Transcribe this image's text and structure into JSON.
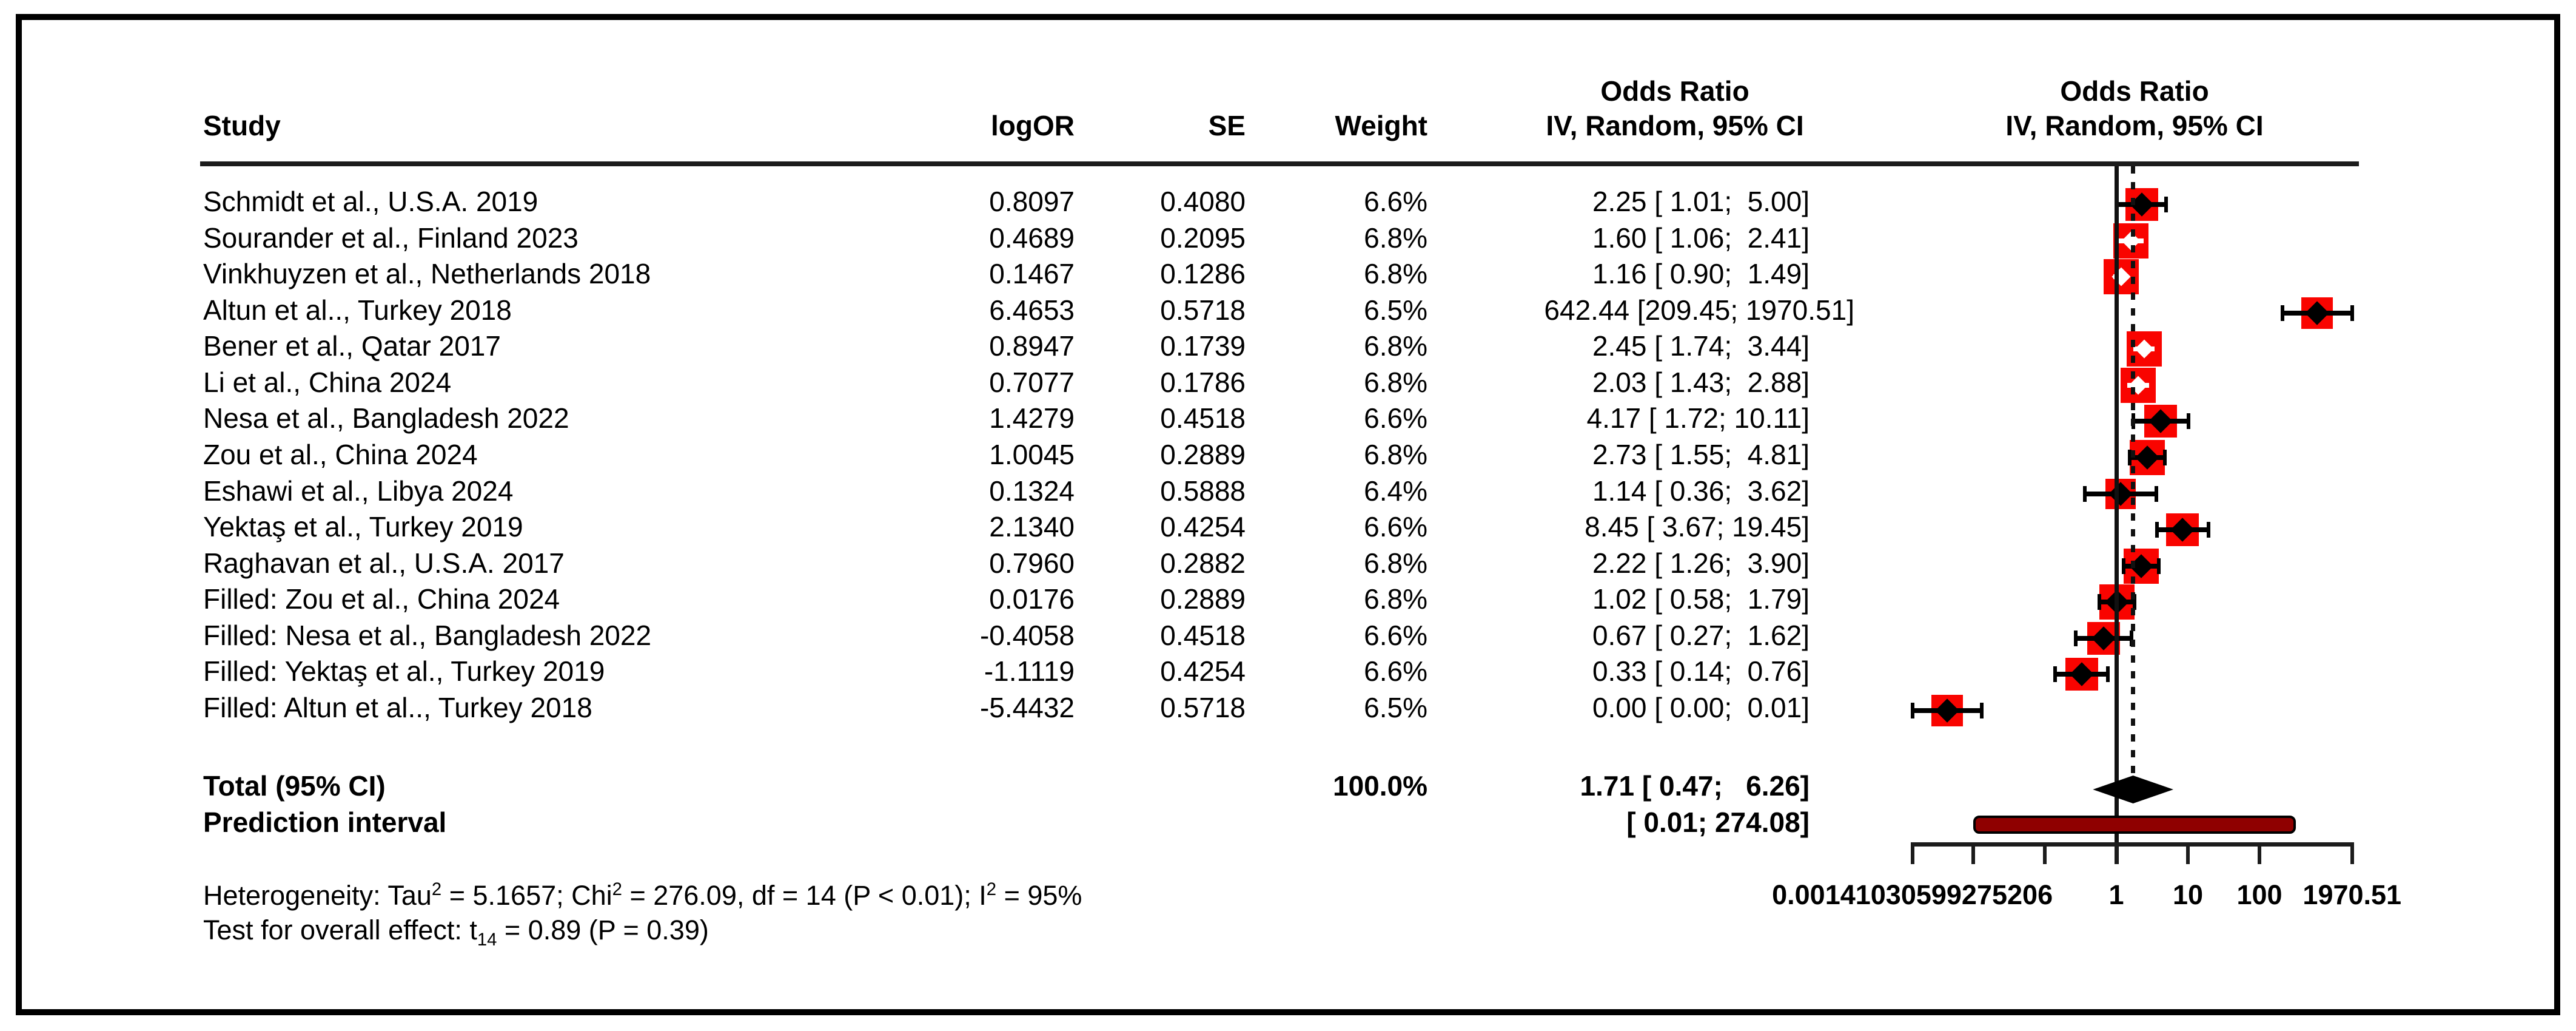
{
  "chart_data": {
    "type": "forest",
    "header": {
      "study": "Study",
      "logor": "logOR",
      "se": "SE",
      "weight": "Weight",
      "ci_line1": "Odds Ratio",
      "ci_line2": "IV, Random, 95% CI",
      "plot_line1": "Odds Ratio",
      "plot_line2": "IV, Random, 95% CI"
    },
    "rows": [
      {
        "study": "Schmidt et al., U.S.A. 2019",
        "logor": "0.8097",
        "se": "0.4080",
        "weight": "6.6%",
        "ci": "2.25 [ 1.01;  5.00]",
        "or": 2.25,
        "low": 1.01,
        "high": 5.0
      },
      {
        "study": "Sourander et al., Finland 2023",
        "logor": "0.4689",
        "se": "0.2095",
        "weight": "6.8%",
        "ci": "1.60 [ 1.06;  2.41]",
        "or": 1.6,
        "low": 1.06,
        "high": 2.41
      },
      {
        "study": "Vinkhuyzen et al., Netherlands 2018",
        "logor": "0.1467",
        "se": "0.1286",
        "weight": "6.8%",
        "ci": "1.16 [ 0.90;  1.49]",
        "or": 1.16,
        "low": 0.9,
        "high": 1.49
      },
      {
        "study": "Altun et al.., Turkey 2018",
        "logor": "6.4653",
        "se": "0.5718",
        "weight": "6.5%",
        "ci": "642.44 [209.45; 1970.51]",
        "or": 642.44,
        "low": 209.45,
        "high": 1970.51,
        "wide_ci_text": true
      },
      {
        "study": "Bener et al., Qatar 2017",
        "logor": "0.8947",
        "se": "0.1739",
        "weight": "6.8%",
        "ci": "2.45 [ 1.74;  3.44]",
        "or": 2.45,
        "low": 1.74,
        "high": 3.44
      },
      {
        "study": "Li et al., China 2024",
        "logor": "0.7077",
        "se": "0.1786",
        "weight": "6.8%",
        "ci": "2.03 [ 1.43;  2.88]",
        "or": 2.03,
        "low": 1.43,
        "high": 2.88
      },
      {
        "study": "Nesa et al., Bangladesh 2022",
        "logor": "1.4279",
        "se": "0.4518",
        "weight": "6.6%",
        "ci": "4.17 [ 1.72; 10.11]",
        "or": 4.17,
        "low": 1.72,
        "high": 10.11
      },
      {
        "study": "Zou et al., China 2024",
        "logor": "1.0045",
        "se": "0.2889",
        "weight": "6.8%",
        "ci": "2.73 [ 1.55;  4.81]",
        "or": 2.73,
        "low": 1.55,
        "high": 4.81
      },
      {
        "study": "Eshawi et al., Libya 2024",
        "logor": "0.1324",
        "se": "0.5888",
        "weight": "6.4%",
        "ci": "1.14 [ 0.36;  3.62]",
        "or": 1.14,
        "low": 0.36,
        "high": 3.62
      },
      {
        "study": "Yektaş et al., Turkey 2019",
        "logor": "2.1340",
        "se": "0.4254",
        "weight": "6.6%",
        "ci": "8.45 [ 3.67; 19.45]",
        "or": 8.45,
        "low": 3.67,
        "high": 19.45
      },
      {
        "study": "Raghavan et al., U.S.A. 2017",
        "logor": "0.7960",
        "se": "0.2882",
        "weight": "6.8%",
        "ci": "2.22 [ 1.26;  3.90]",
        "or": 2.22,
        "low": 1.26,
        "high": 3.9
      },
      {
        "study": "Filled: Zou et al., China 2024",
        "logor": "0.0176",
        "se": "0.2889",
        "weight": "6.8%",
        "ci": "1.02 [ 0.58;  1.79]",
        "or": 1.02,
        "low": 0.58,
        "high": 1.79
      },
      {
        "study": "Filled: Nesa et al., Bangladesh 2022",
        "logor": "-0.4058",
        "se": "0.4518",
        "weight": "6.6%",
        "ci": "0.67 [ 0.27;  1.62]",
        "or": 0.67,
        "low": 0.27,
        "high": 1.62
      },
      {
        "study": "Filled: Yektaş et al., Turkey 2019",
        "logor": "-1.1119",
        "se": "0.4254",
        "weight": "6.6%",
        "ci": "0.33 [ 0.14;  0.76]",
        "or": 0.33,
        "low": 0.14,
        "high": 0.76
      },
      {
        "study": "Filled: Altun et al.., Turkey 2018",
        "logor": "-5.4432",
        "se": "0.5718",
        "weight": "6.5%",
        "ci": "0.00 [ 0.00;  0.01]",
        "or": 0.004323,
        "low": 0.0014103,
        "high": 0.013256
      }
    ],
    "square_size_by_weight": {
      "6.8%": 58,
      "6.6%": 54,
      "6.5%": 52,
      "6.4%": 50
    },
    "total": {
      "label": "Total (95% CI)",
      "weight": "100.0%",
      "ci": "1.71 [ 0.47;   6.26]",
      "or": 1.71,
      "low": 0.47,
      "high": 6.26
    },
    "prediction": {
      "label": "Prediction interval",
      "ci": "[ 0.01; 274.08]",
      "low": 0.01,
      "high": 274.08
    },
    "heterogeneity_segments": [
      {
        "t": "Heterogeneity: Tau"
      },
      {
        "sup": "2"
      },
      {
        "t": " = 5.1657; Chi"
      },
      {
        "sup": "2"
      },
      {
        "t": " = 276.09, df = 14 (P < 0.01); I"
      },
      {
        "sup": "2"
      },
      {
        "t": " = 95%"
      }
    ],
    "overall_test_segments": [
      {
        "t": "Test for overall effect: t"
      },
      {
        "sub": "14"
      },
      {
        "t": " = 0.89 (P = 0.39)"
      }
    ],
    "axis": {
      "scale": "log",
      "ticks": [
        0.0014103,
        0.01,
        0.1,
        1,
        10,
        100,
        1970.51
      ],
      "tick_labels": [
        {
          "value": 0.0014103,
          "text": "0.00141030599275206"
        },
        {
          "value": 1,
          "text": "1"
        },
        {
          "value": 10,
          "text": "10"
        },
        {
          "value": 100,
          "text": "100"
        },
        {
          "value": 1970.51,
          "text": "1970.51"
        }
      ],
      "null_line_at": 1,
      "pooled_line_at": 1.71
    },
    "colors": {
      "square": "#f90400",
      "prediction_bar": "#8f0000",
      "diamond": "#000000",
      "line": "#111111"
    }
  }
}
